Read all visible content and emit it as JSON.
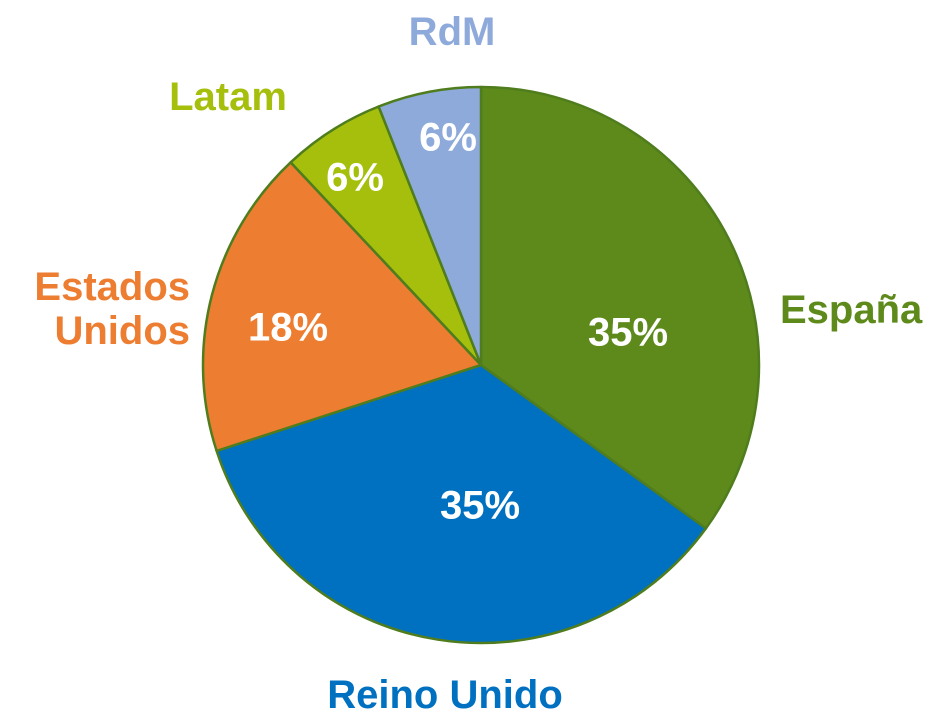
{
  "chart_data": {
    "type": "pie",
    "categories": [
      "España",
      "Reino Unido",
      "Estados Unidos",
      "Latam",
      "RdM"
    ],
    "values": [
      35,
      35,
      18,
      6,
      6
    ],
    "value_labels": [
      "35%",
      "35%",
      "18%",
      "6%",
      "6%"
    ],
    "colors": [
      "#5e8a1c",
      "#0070c0",
      "#ed7d31",
      "#a6bf0c",
      "#8eaadb"
    ]
  }
}
